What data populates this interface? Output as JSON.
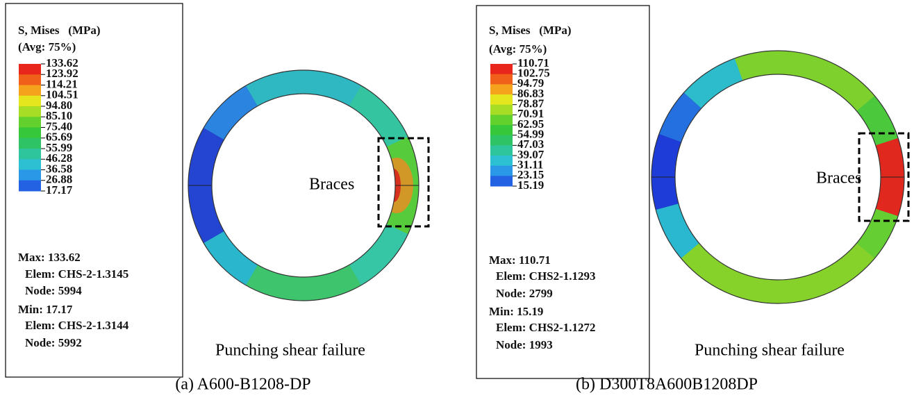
{
  "panels": [
    {
      "legend": {
        "title": "S, Mises   (MPa)",
        "avg": "(Avg: 75%)",
        "levels": [
          "133.62",
          "123.92",
          "114.21",
          "104.51",
          "94.80",
          "85.10",
          "75.40",
          "65.69",
          "55.99",
          "46.28",
          "36.58",
          "26.88",
          "17.17"
        ],
        "max": {
          "label": "Max: 133.62",
          "elem": "Elem: CHS-2-1.3145",
          "node": "Node: 5994"
        },
        "min": {
          "label": "Min: 17.17",
          "elem": "Elem: CHS-2-1.3144",
          "node": "Node: 5992"
        }
      },
      "annotation": "Braces",
      "failure": "Punching shear failure",
      "caption": "(a) A600-B1208-DP"
    },
    {
      "legend": {
        "title": "S, Mises   (MPa)",
        "avg": "(Avg: 75%)",
        "levels": [
          "110.71",
          "102.75",
          "94.79",
          "86.83",
          "78.87",
          "70.91",
          "62.95",
          "54.99",
          "47.03",
          "39.07",
          "31.11",
          "23.15",
          "15.19"
        ],
        "max": {
          "label": "Max: 110.71",
          "elem": "Elem: CHS2-1.1293",
          "node": "Node: 2799"
        },
        "min": {
          "label": "Min: 15.19",
          "elem": "Elem: CHS2-1.1272",
          "node": "Node: 1993"
        }
      },
      "annotation": "Braces",
      "failure": "Punching shear failure",
      "caption": "(b) D300T8A600B1208DP"
    }
  ]
}
